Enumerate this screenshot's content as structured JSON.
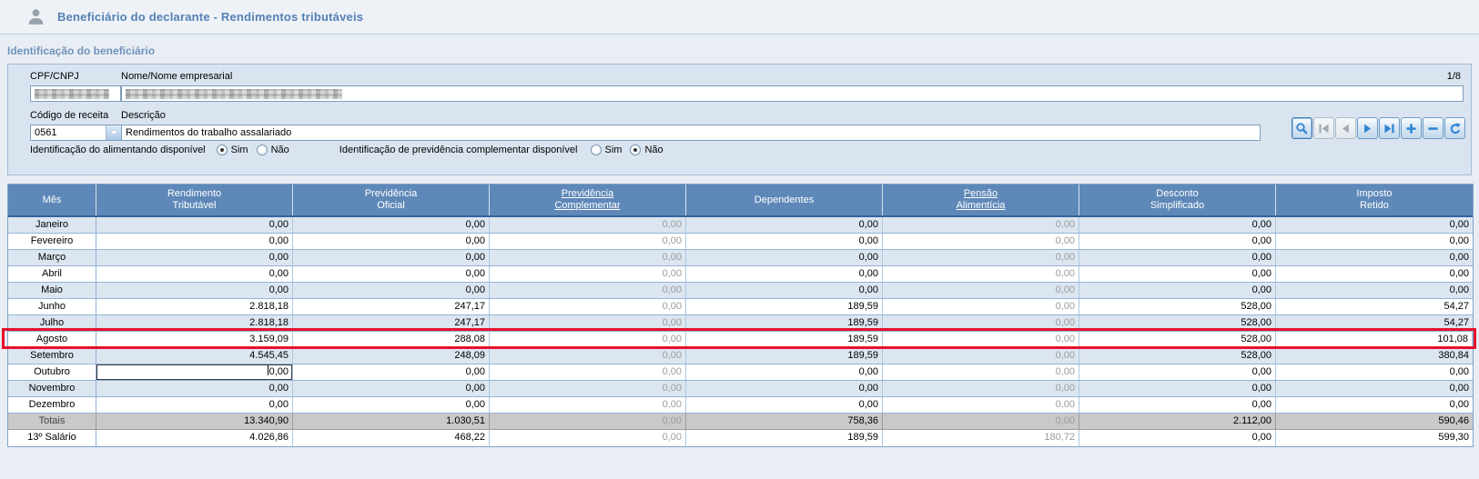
{
  "header": {
    "title": "Beneficiário do declarante - Rendimentos tributáveis"
  },
  "section_title": "Identificação do beneficiário",
  "form": {
    "cpf_label": "CPF/CNPJ",
    "cpf_redacted": true,
    "nome_label": "Nome/Nome empresarial",
    "nome_redacted": true,
    "record_counter": "1/8",
    "codigo_label": "Código de receita",
    "codigo_value": "0561",
    "descricao_label": "Descrição",
    "descricao_value": "Rendimentos do trabalho assalariado",
    "alimentando": {
      "label": "Identificação do alimentando disponível",
      "options": [
        "Sim",
        "Não"
      ],
      "selected": "Sim"
    },
    "prev_complementar": {
      "label": "Identificação de previdência complementar disponível",
      "options": [
        "Sim",
        "Não"
      ],
      "selected": "Não"
    }
  },
  "toolbar": {
    "buttons": [
      {
        "name": "search",
        "disabled": false,
        "primary": true
      },
      {
        "name": "first",
        "disabled": true
      },
      {
        "name": "previous",
        "disabled": true
      },
      {
        "name": "next",
        "disabled": false
      },
      {
        "name": "last",
        "disabled": false
      },
      {
        "name": "add",
        "disabled": false
      },
      {
        "name": "remove",
        "disabled": false
      },
      {
        "name": "undo",
        "disabled": false
      }
    ]
  },
  "table": {
    "columns": [
      {
        "lines": [
          "Mês"
        ],
        "link": false
      },
      {
        "lines": [
          "Rendimento",
          "Tributável"
        ],
        "link": false
      },
      {
        "lines": [
          "Previdência",
          "Oficial"
        ],
        "link": false
      },
      {
        "lines": [
          "Previdência",
          "Complementar"
        ],
        "link": true
      },
      {
        "lines": [
          "Dependentes"
        ],
        "link": false
      },
      {
        "lines": [
          "Pensão",
          "Alimentícia"
        ],
        "link": true
      },
      {
        "lines": [
          "Desconto",
          "Simplificado"
        ],
        "link": false
      },
      {
        "lines": [
          "Imposto",
          "Retido"
        ],
        "link": false
      }
    ],
    "gray_columns": [
      2,
      4
    ],
    "highlight_row": 7,
    "editing": {
      "row": 9,
      "col": 0
    },
    "rows": [
      {
        "label": "Janeiro",
        "values": [
          "0,00",
          "0,00",
          "0,00",
          "0,00",
          "0,00",
          "0,00",
          "0,00"
        ]
      },
      {
        "label": "Fevereiro",
        "values": [
          "0,00",
          "0,00",
          "0,00",
          "0,00",
          "0,00",
          "0,00",
          "0,00"
        ]
      },
      {
        "label": "Março",
        "values": [
          "0,00",
          "0,00",
          "0,00",
          "0,00",
          "0,00",
          "0,00",
          "0,00"
        ]
      },
      {
        "label": "Abril",
        "values": [
          "0,00",
          "0,00",
          "0,00",
          "0,00",
          "0,00",
          "0,00",
          "0,00"
        ]
      },
      {
        "label": "Maio",
        "values": [
          "0,00",
          "0,00",
          "0,00",
          "0,00",
          "0,00",
          "0,00",
          "0,00"
        ]
      },
      {
        "label": "Junho",
        "values": [
          "2.818,18",
          "247,17",
          "0,00",
          "189,59",
          "0,00",
          "528,00",
          "54,27"
        ]
      },
      {
        "label": "Julho",
        "values": [
          "2.818,18",
          "247,17",
          "0,00",
          "189,59",
          "0,00",
          "528,00",
          "54,27"
        ]
      },
      {
        "label": "Agosto",
        "values": [
          "3.159,09",
          "288,08",
          "0,00",
          "189,59",
          "0,00",
          "528,00",
          "101,08"
        ]
      },
      {
        "label": "Setembro",
        "values": [
          "4.545,45",
          "248,09",
          "0,00",
          "189,59",
          "0,00",
          "528,00",
          "380,84"
        ]
      },
      {
        "label": "Outubro",
        "values": [
          "0,00",
          "0,00",
          "0,00",
          "0,00",
          "0,00",
          "0,00",
          "0,00"
        ]
      },
      {
        "label": "Novembro",
        "values": [
          "0,00",
          "0,00",
          "0,00",
          "0,00",
          "0,00",
          "0,00",
          "0,00"
        ]
      },
      {
        "label": "Dezembro",
        "values": [
          "0,00",
          "0,00",
          "0,00",
          "0,00",
          "0,00",
          "0,00",
          "0,00"
        ]
      },
      {
        "label": "Totais",
        "values": [
          "13.340,90",
          "1.030,51",
          "0,00",
          "758,36",
          "0,00",
          "2.112,00",
          "590,46"
        ]
      },
      {
        "label": "13º Salário",
        "values": [
          "4.026,86",
          "468,22",
          "0,00",
          "189,59",
          "180,72",
          "0,00",
          "599,30"
        ]
      }
    ]
  },
  "colors": {
    "header_blue": "#5E88B8",
    "row_light": "#DCE6F1",
    "totals_gray": "#C9C9C9",
    "highlight_red": "#E8112D",
    "accent_blue": "#2F86D2",
    "title_blue": "#5480B4"
  }
}
